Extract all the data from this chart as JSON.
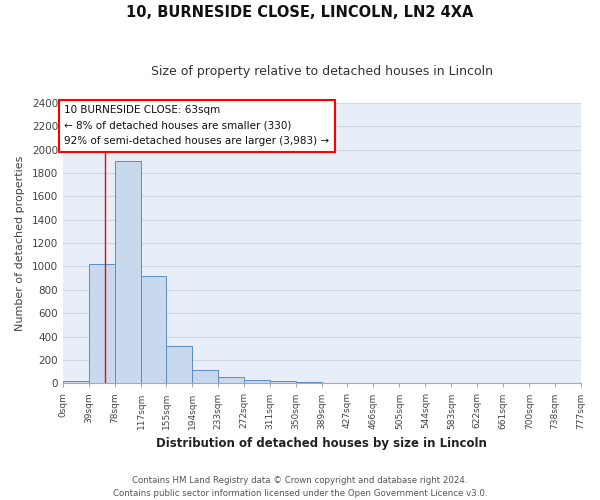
{
  "title": "10, BURNESIDE CLOSE, LINCOLN, LN2 4XA",
  "subtitle": "Size of property relative to detached houses in Lincoln",
  "xlabel": "Distribution of detached houses by size in Lincoln",
  "ylabel": "Number of detached properties",
  "bin_edges": [
    0,
    39,
    78,
    117,
    155,
    194,
    233,
    272,
    311,
    350,
    389,
    427,
    466,
    505,
    544,
    583,
    622,
    661,
    700,
    738,
    777
  ],
  "bin_labels": [
    "0sqm",
    "39sqm",
    "78sqm",
    "117sqm",
    "155sqm",
    "194sqm",
    "233sqm",
    "272sqm",
    "311sqm",
    "350sqm",
    "389sqm",
    "427sqm",
    "466sqm",
    "505sqm",
    "544sqm",
    "583sqm",
    "622sqm",
    "661sqm",
    "700sqm",
    "738sqm",
    "777sqm"
  ],
  "bar_heights": [
    20,
    1020,
    1900,
    920,
    320,
    110,
    50,
    30,
    20,
    15,
    0,
    0,
    0,
    0,
    0,
    0,
    0,
    0,
    0,
    0
  ],
  "bar_color": "#c8d9ee",
  "bar_edge_color": "#5b8cc8",
  "red_line_x": 63,
  "ylim": [
    0,
    2400
  ],
  "yticks": [
    0,
    200,
    400,
    600,
    800,
    1000,
    1200,
    1400,
    1600,
    1800,
    2000,
    2200,
    2400
  ],
  "annotation_lines": [
    "10 BURNESIDE CLOSE: 63sqm",
    "← 8% of detached houses are smaller (330)",
    "92% of semi-detached houses are larger (3,983) →"
  ],
  "footer_lines": [
    "Contains HM Land Registry data © Crown copyright and database right 2024.",
    "Contains public sector information licensed under the Open Government Licence v3.0."
  ],
  "grid_color": "#ccd5e5",
  "background_color": "#e8eef8"
}
